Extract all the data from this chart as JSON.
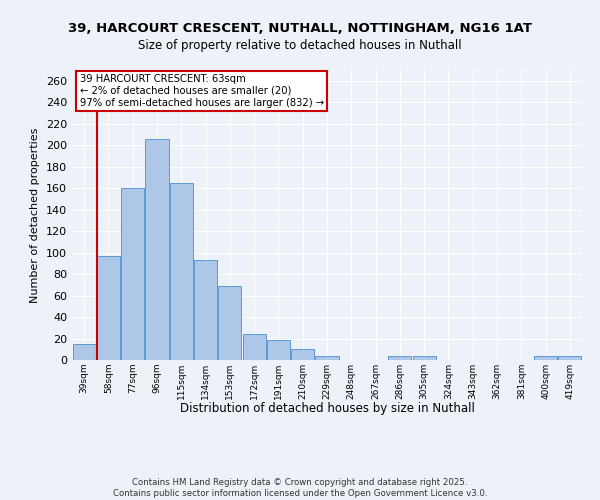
{
  "title_line1": "39, HARCOURT CRESCENT, NUTHALL, NOTTINGHAM, NG16 1AT",
  "title_line2": "Size of property relative to detached houses in Nuthall",
  "xlabel": "Distribution of detached houses by size in Nuthall",
  "ylabel": "Number of detached properties",
  "categories": [
    "39sqm",
    "58sqm",
    "77sqm",
    "96sqm",
    "115sqm",
    "134sqm",
    "153sqm",
    "172sqm",
    "191sqm",
    "210sqm",
    "229sqm",
    "248sqm",
    "267sqm",
    "286sqm",
    "305sqm",
    "324sqm",
    "343sqm",
    "362sqm",
    "381sqm",
    "400sqm",
    "419sqm"
  ],
  "values": [
    15,
    97,
    160,
    206,
    165,
    93,
    69,
    24,
    19,
    10,
    4,
    0,
    0,
    4,
    4,
    0,
    0,
    0,
    0,
    4,
    4
  ],
  "bar_color": "#aec6e8",
  "bar_edge_color": "#5b9bd5",
  "vline_color": "#cc0000",
  "annotation_title": "39 HARCOURT CRESCENT: 63sqm",
  "annotation_line1": "← 2% of detached houses are smaller (20)",
  "annotation_line2": "97% of semi-detached houses are larger (832) →",
  "annotation_box_color": "#ffffff",
  "annotation_box_edge": "#cc0000",
  "ylim": [
    0,
    270
  ],
  "yticks": [
    0,
    20,
    40,
    60,
    80,
    100,
    120,
    140,
    160,
    180,
    200,
    220,
    240,
    260
  ],
  "footer_line1": "Contains HM Land Registry data © Crown copyright and database right 2025.",
  "footer_line2": "Contains public sector information licensed under the Open Government Licence v3.0.",
  "bg_color": "#edf2f9",
  "grid_color": "#ffffff",
  "title_fontsize": 9.5,
  "subtitle_fontsize": 8.5,
  "xlabel_fontsize": 8.5,
  "ylabel_fontsize": 8
}
